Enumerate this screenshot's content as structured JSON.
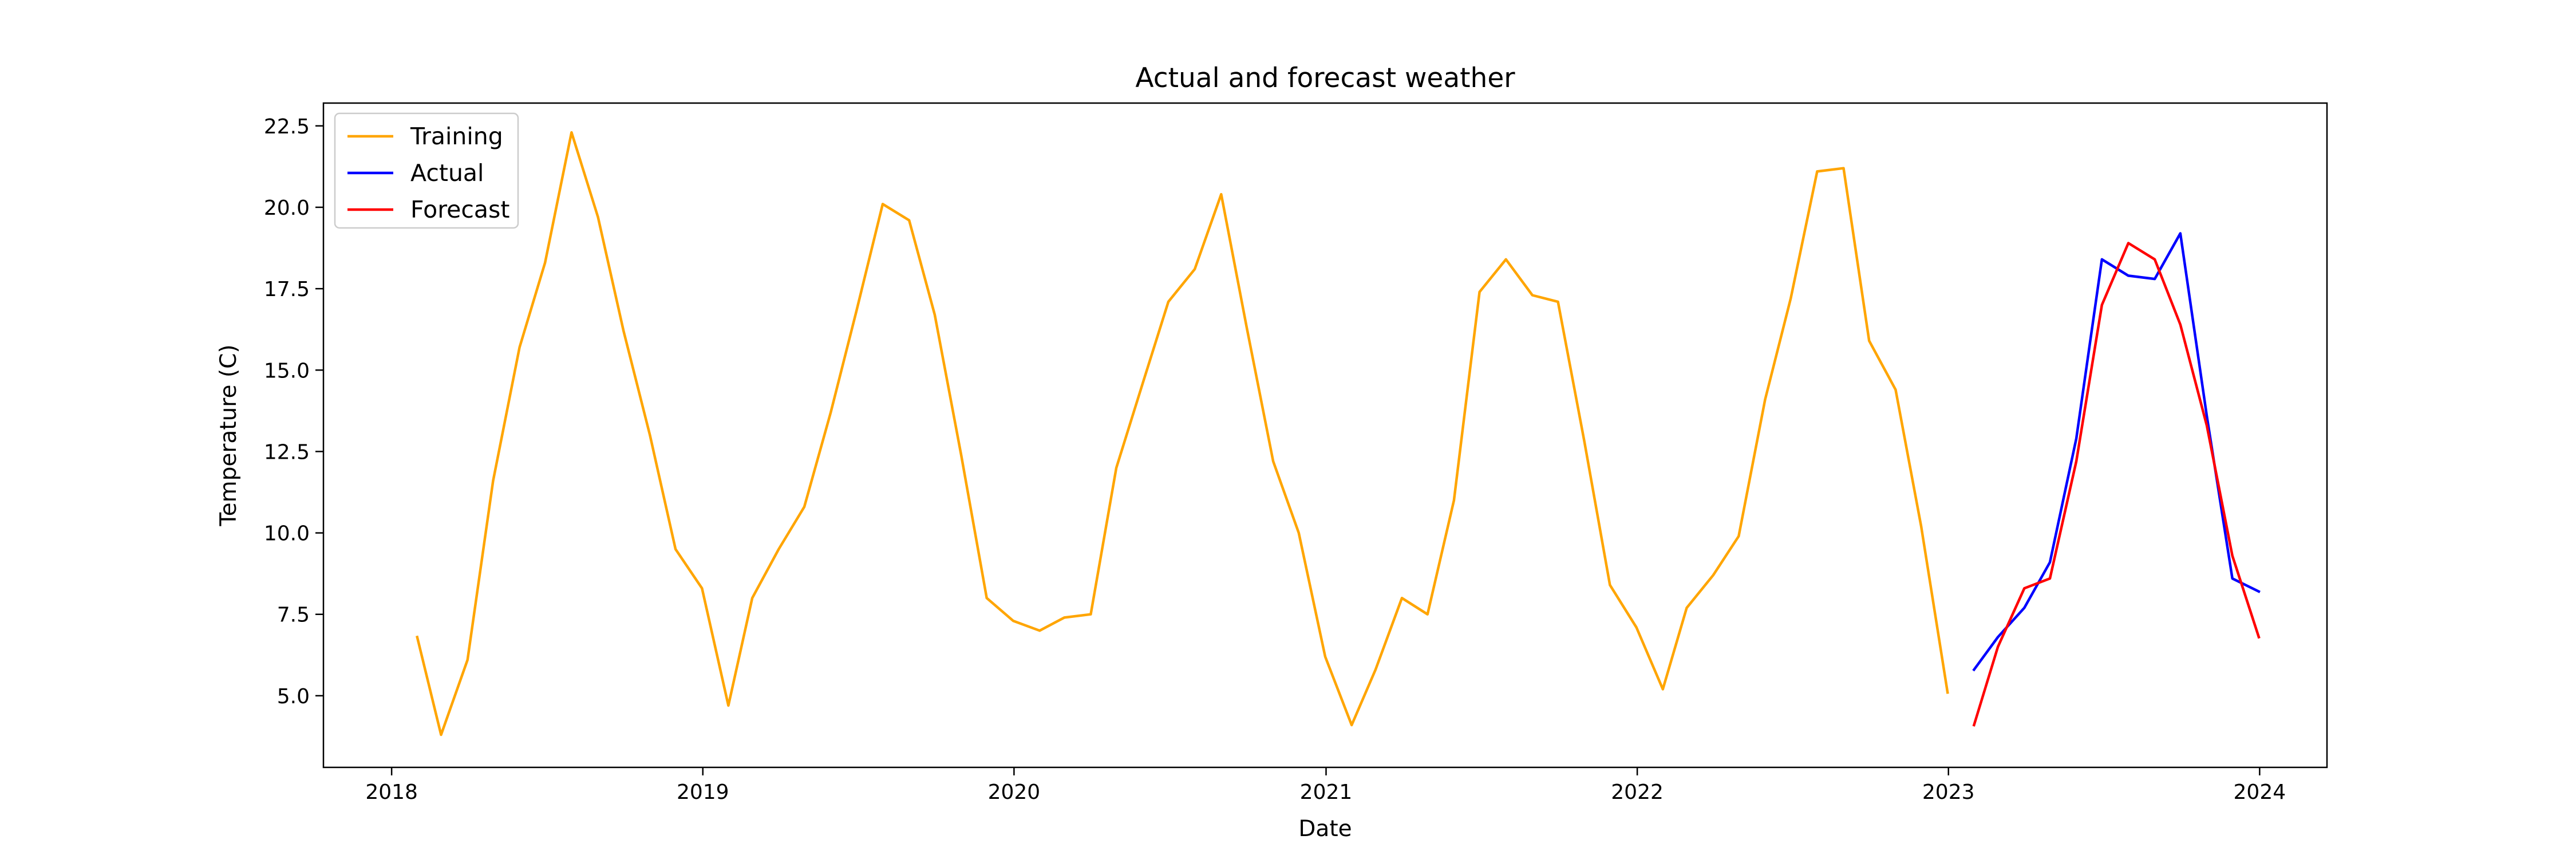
{
  "chart_data": {
    "type": "line",
    "title": "Actual and forecast weather",
    "xlabel": "Date",
    "ylabel": "Temperature (C)",
    "x_ticks": [
      "2018",
      "2019",
      "2020",
      "2021",
      "2022",
      "2023",
      "2024"
    ],
    "y_ticks": [
      "5.0",
      "7.5",
      "10.0",
      "12.5",
      "15.0",
      "17.5",
      "20.0",
      "22.5"
    ],
    "xlim": [
      "2017-10-13",
      "2024-03-20"
    ],
    "ylim": [
      2.8,
      23.2
    ],
    "grid": false,
    "legend_position": "upper left",
    "series": [
      {
        "name": "Training",
        "color": "#ffa500",
        "x": [
          "2018-01-31",
          "2018-02-28",
          "2018-03-31",
          "2018-04-30",
          "2018-05-31",
          "2018-06-30",
          "2018-07-31",
          "2018-08-31",
          "2018-09-30",
          "2018-10-31",
          "2018-11-30",
          "2018-12-31",
          "2019-01-31",
          "2019-02-28",
          "2019-03-31",
          "2019-04-30",
          "2019-05-31",
          "2019-06-30",
          "2019-07-31",
          "2019-08-31",
          "2019-09-30",
          "2019-10-31",
          "2019-11-30",
          "2019-12-31",
          "2020-01-31",
          "2020-02-29",
          "2020-03-31",
          "2020-04-30",
          "2020-05-31",
          "2020-06-30",
          "2020-07-31",
          "2020-08-31",
          "2020-09-30",
          "2020-10-31",
          "2020-11-30",
          "2020-12-31",
          "2021-01-31",
          "2021-02-28",
          "2021-03-31",
          "2021-04-30",
          "2021-05-31",
          "2021-06-30",
          "2021-07-31",
          "2021-08-31",
          "2021-09-30",
          "2021-10-31",
          "2021-11-30",
          "2021-12-31",
          "2022-01-31",
          "2022-02-28",
          "2022-03-31",
          "2022-04-30",
          "2022-05-31",
          "2022-06-30",
          "2022-07-31",
          "2022-08-31",
          "2022-09-30",
          "2022-10-31",
          "2022-11-30",
          "2022-12-31"
        ],
        "y": [
          6.8,
          3.8,
          6.1,
          11.6,
          15.7,
          18.3,
          22.3,
          19.7,
          16.2,
          13.0,
          9.5,
          8.3,
          4.7,
          8.0,
          9.5,
          10.8,
          13.7,
          16.8,
          20.1,
          19.6,
          16.7,
          12.4,
          8.0,
          7.3,
          7.0,
          7.4,
          7.5,
          12.0,
          14.6,
          17.1,
          18.1,
          20.4,
          16.3,
          12.2,
          10.0,
          6.2,
          4.1,
          5.8,
          8.0,
          7.5,
          11.0,
          17.4,
          18.4,
          17.3,
          17.1,
          12.8,
          8.4,
          7.1,
          5.2,
          7.7,
          8.7,
          9.9,
          14.1,
          17.2,
          21.1,
          21.2,
          15.9,
          14.4,
          10.2,
          5.1
        ]
      },
      {
        "name": "Actual",
        "color": "#0000ff",
        "x": [
          "2023-01-31",
          "2023-02-28",
          "2023-03-31",
          "2023-04-30",
          "2023-05-31",
          "2023-06-30",
          "2023-07-31",
          "2023-08-31",
          "2023-09-30",
          "2023-10-31",
          "2023-11-30",
          "2023-12-31"
        ],
        "y": [
          5.8,
          6.8,
          7.7,
          9.1,
          12.9,
          18.4,
          17.9,
          17.8,
          19.2,
          13.6,
          8.6,
          8.2
        ]
      },
      {
        "name": "Forecast",
        "color": "#ff0000",
        "x": [
          "2023-01-31",
          "2023-02-28",
          "2023-03-31",
          "2023-04-30",
          "2023-05-31",
          "2023-06-30",
          "2023-07-31",
          "2023-08-31",
          "2023-09-30",
          "2023-10-31",
          "2023-11-30",
          "2023-12-31"
        ],
        "y": [
          4.1,
          6.5,
          8.3,
          8.6,
          12.2,
          17.0,
          18.9,
          18.4,
          16.4,
          13.3,
          9.3,
          6.8
        ]
      }
    ]
  }
}
